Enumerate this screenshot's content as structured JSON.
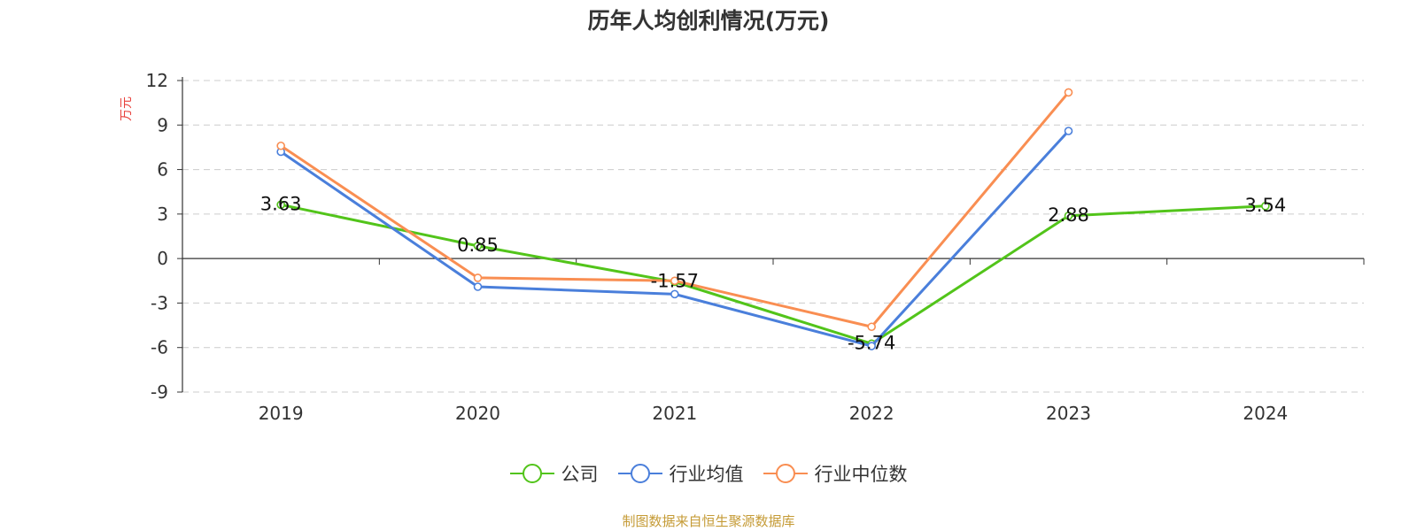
{
  "title": "历年人均创利情况(万元)",
  "source": "制图数据来自恒生聚源数据库",
  "chart_data": {
    "type": "line",
    "categories": [
      "2019",
      "2020",
      "2021",
      "2022",
      "2023",
      "2024"
    ],
    "ylabel": "万元",
    "ylim": [
      -9,
      12
    ],
    "yticks": [
      12,
      9,
      6,
      3,
      0,
      -3,
      -6,
      -9
    ],
    "grid": true,
    "legend_position": "bottom",
    "series": [
      {
        "name": "公司",
        "color": "#52c41a",
        "values": [
          3.63,
          0.85,
          -1.57,
          -5.74,
          2.88,
          3.54
        ],
        "labels": [
          "3.63",
          "0.85",
          "-1.57",
          "-5.74",
          "2.88",
          "3.54"
        ]
      },
      {
        "name": "行业均值",
        "color": "#4a7fdb",
        "values": [
          7.2,
          -1.9,
          -2.4,
          -5.9,
          8.6,
          null
        ]
      },
      {
        "name": "行业中位数",
        "color": "#f98e52",
        "values": [
          7.6,
          -1.3,
          -1.5,
          -4.6,
          11.2,
          null
        ]
      }
    ]
  }
}
